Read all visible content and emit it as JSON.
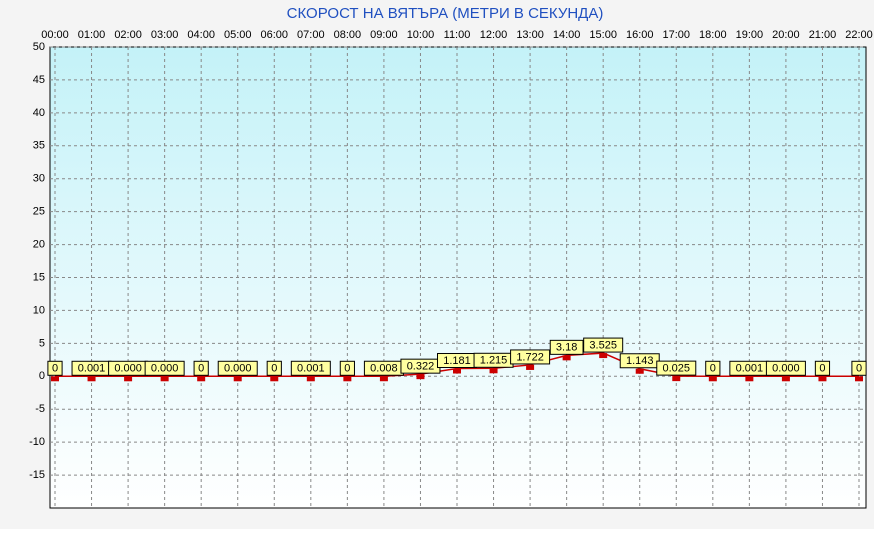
{
  "chart_data": {
    "type": "line",
    "title": "СКОРОСТ НА ВЯТЪРА (МЕТРИ В СЕКУНДА)",
    "categories": [
      "00:00",
      "01:00",
      "02:00",
      "03:00",
      "04:00",
      "05:00",
      "06:00",
      "07:00",
      "08:00",
      "09:00",
      "10:00",
      "11:00",
      "12:00",
      "13:00",
      "14:00",
      "15:00",
      "16:00",
      "17:00",
      "18:00",
      "19:00",
      "20:00",
      "21:00",
      "22:00"
    ],
    "values": [
      0,
      0.001,
      0,
      0,
      0,
      0,
      0,
      0.001,
      0,
      0.008,
      0.322,
      1.181,
      1.215,
      1.722,
      3.18,
      3.525,
      1.143,
      0.025,
      0,
      0.001,
      0,
      0,
      0
    ],
    "value_labels": [
      "0",
      "0.001",
      "0.000",
      "0.000",
      "0",
      "0.000",
      "0",
      "0.001",
      "0",
      "0.008",
      "0.322",
      "1.181",
      "1.215",
      "1.722",
      "3.18",
      "3.525",
      "1.143",
      "0.025",
      "0",
      "0.001",
      "0.000",
      "0",
      "0"
    ],
    "color": "#cc0000",
    "ylim": [
      -20,
      50
    ],
    "yticks": [
      50,
      45,
      40,
      35,
      30,
      25,
      20,
      15,
      10,
      5,
      0,
      -5,
      -10,
      -15
    ],
    "grid": true
  }
}
